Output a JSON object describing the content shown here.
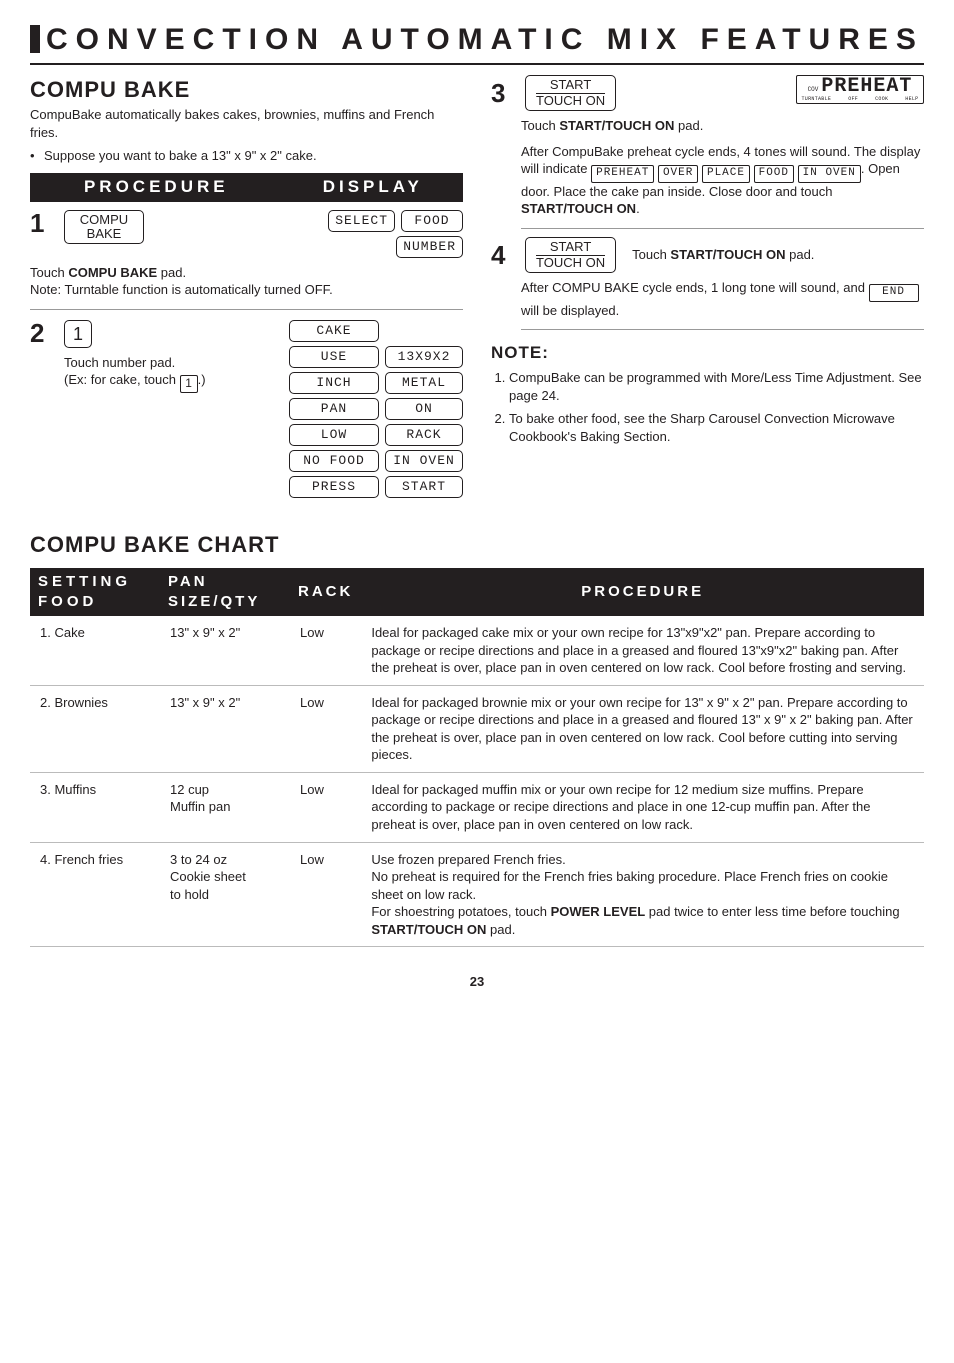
{
  "title": "CONVECTION AUTOMATIC MIX FEATURES",
  "left": {
    "heading": "COMPU BAKE",
    "intro": "CompuBake automatically bakes cakes, brownies, muffins and French fries.",
    "bullet": "Suppose you want to bake a 13\" x 9\" x 2\" cake.",
    "procHeader": {
      "left": "PROCEDURE",
      "right": "DISPLAY"
    },
    "step1": {
      "num": "1",
      "btnTop": "COMPU",
      "btnBottom": "BAKE",
      "dispSelect": "SELECT",
      "dispFood": "FOOD",
      "dispNumber": "NUMBER",
      "text1": "Touch ",
      "bold1": "COMPU BAKE",
      "text1b": " pad.",
      "text2": "Note: Turntable function is automatically turned OFF."
    },
    "step2": {
      "num": "2",
      "btnNumber": "1",
      "line1": "Touch number pad.",
      "line2a": "(Ex: for cake, touch ",
      "line2btn": "1",
      "line2b": ".)",
      "grid": [
        [
          "CAKE",
          ""
        ],
        [
          "USE",
          "13X9X2"
        ],
        [
          "INCH",
          "METAL"
        ],
        [
          "PAN",
          "ON"
        ],
        [
          "LOW",
          "RACK"
        ],
        [
          "NO FOOD",
          "IN OVEN"
        ],
        [
          "PRESS",
          "START"
        ]
      ]
    }
  },
  "right": {
    "step3": {
      "num": "3",
      "btnTop": "START",
      "btnBottom": "TOUCH ON",
      "preheat": {
        "cov": "COV",
        "main": "PREHEAT",
        "sub": [
          "TURNTABLE",
          "OFF",
          "COOK",
          "HELP"
        ]
      },
      "line1a": "Touch ",
      "bold1": "START/TOUCH ON",
      "line1b": " pad.",
      "para_a": "After CompuBake preheat cycle ends, 4 tones will sound. The display will indicate ",
      "d1": "PREHEAT",
      "d2": "OVER",
      "d3": "PLACE",
      "d4": "FOOD",
      "d5": "IN OVEN",
      "para_b": ". Open door. Place the cake pan inside. Close door and touch ",
      "bold2": "START/TOUCH ON",
      "para_c": "."
    },
    "step4": {
      "num": "4",
      "btnTop": "START",
      "btnBottom": "TOUCH ON",
      "line1a": "Touch ",
      "bold1": "START/TOUCH ON",
      "line1b": " pad.",
      "para_a": "After COMPU BAKE cycle ends, 1 long tone will sound, and ",
      "d1": "END",
      "para_b": " will be displayed."
    },
    "noteHead": "NOTE:",
    "notes": [
      "CompuBake can be programmed with More/Less Time Adjustment. See page 24.",
      "To bake other food, see the Sharp Carousel Convection Microwave Cookbook's Baking Section."
    ]
  },
  "chart": {
    "title": "COMPU BAKE CHART",
    "columns": [
      "SETTING  FOOD",
      "PAN SIZE/QTY",
      "RACK",
      "PROCEDURE"
    ],
    "rows": [
      {
        "food": "1. Cake",
        "pan": "13\" x 9\" x 2\"",
        "rack": "Low",
        "proc": "Ideal for packaged cake mix or your own recipe for 13\"x9\"x2\" pan. Prepare according to package or recipe directions and place in a greased and floured 13\"x9\"x2\" baking pan. After the preheat is over, place pan in oven centered on low rack. Cool before frosting and serving."
      },
      {
        "food": "2. Brownies",
        "pan": "13\" x 9\" x 2\"",
        "rack": "Low",
        "proc": "Ideal for packaged brownie mix or your own recipe for 13\" x 9\" x 2\" pan. Prepare according to package or recipe directions and place in a greased and floured 13\" x 9\" x 2\" baking pan. After the preheat is over, place pan in oven centered on low rack. Cool before cutting into serving pieces."
      },
      {
        "food": "3. Muffins",
        "pan": "12 cup\nMuffin pan",
        "rack": "Low",
        "proc": "Ideal for packaged muffin mix or your own recipe for 12 medium size muffins. Prepare according to package or recipe directions and place in one 12-cup muffin pan. After the preheat is over, place pan in oven centered on low rack."
      },
      {
        "food": "4. French fries",
        "pan": "3 to 24 oz\nCookie sheet\nto hold",
        "rack": "Low",
        "proc_html": "Use frozen prepared French fries.<br>No preheat is required for the French fries baking procedure. Place French fries on cookie sheet on low rack.<br>For shoestring potatoes, touch <b>POWER LEVEL</b> pad twice to enter less time before touching <b>START/TOUCH ON</b> pad."
      }
    ]
  },
  "pageNumber": "23"
}
